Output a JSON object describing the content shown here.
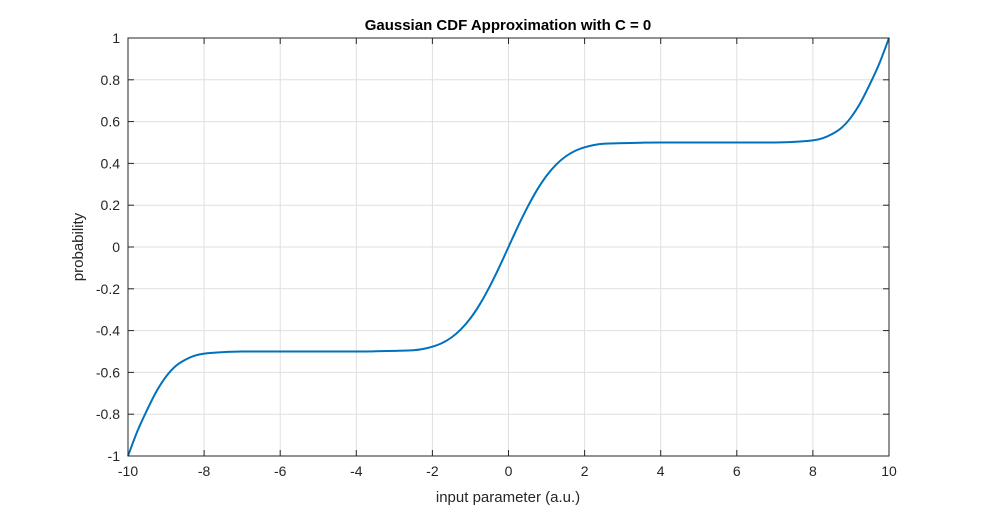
{
  "chart_data": {
    "type": "line",
    "title": "Gaussian CDF Approximation with C = 0",
    "xlabel": "input parameter (a.u.)",
    "ylabel": "probability",
    "xlim": [
      -10,
      10
    ],
    "ylim": [
      -1,
      1
    ],
    "grid": true,
    "x_ticks": [
      -10,
      -8,
      -6,
      -4,
      -2,
      0,
      2,
      4,
      6,
      8,
      10
    ],
    "x_tick_labels": [
      "-10",
      "-8",
      "-6",
      "-4",
      "-2",
      "0",
      "2",
      "4",
      "6",
      "8",
      "10"
    ],
    "y_ticks": [
      -1,
      -0.8,
      -0.6,
      -0.4,
      -0.2,
      0,
      0.2,
      0.4,
      0.6,
      0.8,
      1
    ],
    "y_tick_labels": [
      "-1",
      "-0.8",
      "-0.6",
      "-0.4",
      "-0.2",
      "0",
      "0.2",
      "0.4",
      "0.6",
      "0.8",
      "1"
    ],
    "series": [
      {
        "color": "#0072BD",
        "x": [
          -10,
          -9.75,
          -9.5,
          -9.25,
          -9,
          -8.75,
          -8.5,
          -8.25,
          -8,
          -7.5,
          -7,
          -6.5,
          -6,
          -5,
          -4,
          -3.5,
          -3,
          -2.5,
          -2.25,
          -2,
          -1.75,
          -1.5,
          -1.25,
          -1,
          -0.75,
          -0.5,
          -0.25,
          0,
          0.25,
          0.5,
          0.75,
          1,
          1.25,
          1.5,
          1.75,
          2,
          2.25,
          2.5,
          3,
          3.5,
          4,
          5,
          6,
          6.5,
          7,
          7.5,
          8,
          8.25,
          8.5,
          8.75,
          9,
          9.25,
          9.5,
          9.75,
          10
        ],
        "y": [
          -1,
          -0.88,
          -0.78,
          -0.69,
          -0.62,
          -0.57,
          -0.54,
          -0.52,
          -0.51,
          -0.503,
          -0.5,
          -0.5,
          -0.5,
          -0.5,
          -0.5,
          -0.499,
          -0.497,
          -0.494,
          -0.488,
          -0.477,
          -0.46,
          -0.433,
          -0.394,
          -0.341,
          -0.273,
          -0.191,
          -0.099,
          0,
          0.099,
          0.191,
          0.273,
          0.341,
          0.394,
          0.433,
          0.46,
          0.477,
          0.488,
          0.494,
          0.497,
          0.499,
          0.5,
          0.5,
          0.5,
          0.5,
          0.5,
          0.503,
          0.51,
          0.52,
          0.54,
          0.57,
          0.62,
          0.69,
          0.78,
          0.88,
          1
        ]
      }
    ]
  }
}
